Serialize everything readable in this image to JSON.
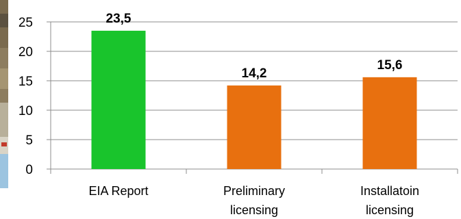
{
  "chart_data": {
    "type": "bar",
    "categories": [
      [
        "EIA Report"
      ],
      [
        "Preliminary",
        "licensing"
      ],
      [
        "Installatoin",
        "licensing"
      ]
    ],
    "values": [
      23.5,
      14.2,
      15.6
    ],
    "data_labels": [
      "23,5",
      "14,2",
      "15,6"
    ],
    "bar_colors": [
      "#19c42c",
      "#e8700f",
      "#e8700f"
    ],
    "title": "",
    "xlabel": "",
    "ylabel": "",
    "ylim": [
      0,
      25
    ],
    "yticks": [
      0,
      5,
      10,
      15,
      20,
      25
    ],
    "grid": true,
    "legend": "none"
  }
}
